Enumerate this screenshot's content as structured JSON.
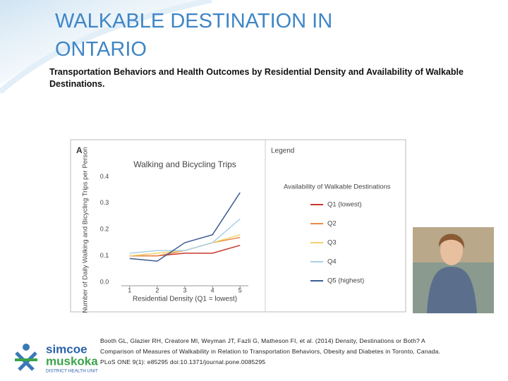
{
  "slide": {
    "title": "WALKABLE DESTINATION IN ONTARIO",
    "subtitle": "Transportation Behaviors and Health Outcomes by Residential Density and Availability of Walkable Destinations.",
    "citation": [
      "Booth GL, Glazier RH, Creatore MI, Weyman JT, Fazli G, Matheson FI, et al. (2014) Density, Destinations or Both? A",
      "Comparison of Measures of Walkability in Relation to Transportation Behaviors, Obesity and Diabetes in Toronto, Canada.",
      "PLoS ONE 9(1): e85295 doi:10.1371/journal.pone.0085295"
    ],
    "logo": {
      "line1": "simcoe",
      "line2": "muskoka",
      "line3": "DISTRICT HEALTH UNIT"
    }
  },
  "chart_data": {
    "type": "line",
    "panel": "A",
    "title": "Walking and Bicycling Trips",
    "y_label": "Number of Daily Walking and Bicycling Trips per Person",
    "x_label": "Residential Density (Q1 = lowest)",
    "legend_title": "Legend",
    "legend_subtitle": "Availability of Walkable Destinations",
    "x": [
      1,
      2,
      3,
      4,
      5
    ],
    "xlim": [
      0.7,
      5.3
    ],
    "xticks": [
      1,
      2,
      3,
      4,
      5
    ],
    "ylim": [
      0,
      0.42
    ],
    "yticks": [
      {
        "value": 0,
        "label": "0.0"
      },
      0.1,
      0.2,
      0.3,
      0.4
    ],
    "series": [
      {
        "name": "Q1 (lowest)",
        "color": "#c8372d",
        "values": [
          0.1,
          0.1,
          0.11,
          0.11,
          0.14
        ]
      },
      {
        "name": "Q2",
        "color": "#ea8a4a",
        "values": [
          0.1,
          0.1,
          0.12,
          0.15,
          0.17
        ]
      },
      {
        "name": "Q3",
        "color": "#f3d36a",
        "values": [
          0.1,
          0.11,
          0.12,
          0.15,
          0.18
        ]
      },
      {
        "name": "Q4",
        "color": "#a9cfe6",
        "values": [
          0.11,
          0.12,
          0.12,
          0.15,
          0.24
        ]
      },
      {
        "name": "Q5 (highest)",
        "color": "#3d5c92",
        "values": [
          0.09,
          0.08,
          0.15,
          0.18,
          0.34
        ]
      }
    ]
  }
}
